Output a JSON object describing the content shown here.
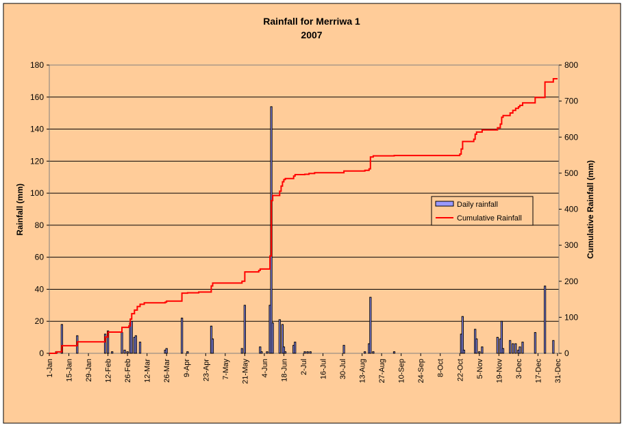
{
  "chart_data": {
    "type": "bar+line",
    "title": "Rainfall for Merriwa 1",
    "subtitle": "2007",
    "ylabel": "Rainfall (mm)",
    "y2label": "Cumulative Rainfall (mm)",
    "ylim": [
      0,
      180
    ],
    "y2lim": [
      0,
      800
    ],
    "yticks": [
      0,
      20,
      40,
      60,
      80,
      100,
      120,
      140,
      160,
      180
    ],
    "y2ticks": [
      0,
      100,
      200,
      300,
      400,
      500,
      600,
      700,
      800
    ],
    "grid": true,
    "legend_position": "right",
    "x_tick_labels": [
      "1-Jan",
      "15-Jan",
      "29-Jan",
      "12-Feb",
      "26-Feb",
      "12-Mar",
      "26-Mar",
      "9-Apr",
      "23-Apr",
      "7-May",
      "21-May",
      "4-Jun",
      "18-Jun",
      "2-Jul",
      "16-Jul",
      "30-Jul",
      "13-Aug",
      "27-Aug",
      "10-Sep",
      "24-Sep",
      "8-Oct",
      "22-Oct",
      "5-Nov",
      "19-Nov",
      "3-Dec",
      "17-Dec",
      "31-Dec"
    ],
    "colors": {
      "background": "#ffcc99",
      "plot_area": "#ffcc99",
      "daily_bar_fill": "#9999ff",
      "daily_bar_stroke": "#000000",
      "cumulative_line": "#ff0000",
      "gridline": "#000000"
    },
    "series": [
      {
        "name": "Daily rainfall",
        "axis": "left",
        "kind": "bar",
        "points": [
          [
            "2007-01-06",
            1
          ],
          [
            "2007-01-10",
            18
          ],
          [
            "2007-01-21",
            11
          ],
          [
            "2007-02-10",
            12
          ],
          [
            "2007-02-12",
            14
          ],
          [
            "2007-02-15",
            1
          ],
          [
            "2007-02-22",
            13
          ],
          [
            "2007-02-24",
            2
          ],
          [
            "2007-02-26",
            1
          ],
          [
            "2007-02-28",
            19
          ],
          [
            "2007-02-29",
            20
          ],
          [
            "2007-03-03",
            10
          ],
          [
            "2007-03-04",
            11
          ],
          [
            "2007-03-07",
            7
          ],
          [
            "2007-03-25",
            2
          ],
          [
            "2007-03-26",
            3
          ],
          [
            "2007-04-06",
            22
          ],
          [
            "2007-04-10",
            1
          ],
          [
            "2007-04-27",
            17
          ],
          [
            "2007-04-28",
            9
          ],
          [
            "2007-05-19",
            3
          ],
          [
            "2007-05-21",
            30
          ],
          [
            "2007-06-01",
            4
          ],
          [
            "2007-06-02",
            1
          ],
          [
            "2007-06-06",
            1
          ],
          [
            "2007-06-08",
            30
          ],
          [
            "2007-06-09",
            154
          ],
          [
            "2007-06-10",
            19
          ],
          [
            "2007-06-15",
            21
          ],
          [
            "2007-06-17",
            18
          ],
          [
            "2007-06-18",
            4
          ],
          [
            "2007-06-19",
            1
          ],
          [
            "2007-06-25",
            5
          ],
          [
            "2007-06-26",
            7
          ],
          [
            "2007-07-03",
            1
          ],
          [
            "2007-07-05",
            1
          ],
          [
            "2007-07-07",
            1
          ],
          [
            "2007-07-31",
            5
          ],
          [
            "2007-08-15",
            1
          ],
          [
            "2007-08-18",
            6
          ],
          [
            "2007-08-19",
            35
          ],
          [
            "2007-08-21",
            1
          ],
          [
            "2007-09-05",
            1
          ],
          [
            "2007-10-23",
            12
          ],
          [
            "2007-10-24",
            23
          ],
          [
            "2007-10-25",
            2
          ],
          [
            "2007-11-02",
            15
          ],
          [
            "2007-11-03",
            9
          ],
          [
            "2007-11-05",
            1
          ],
          [
            "2007-11-07",
            4
          ],
          [
            "2007-11-18",
            10
          ],
          [
            "2007-11-20",
            9
          ],
          [
            "2007-11-21",
            20
          ],
          [
            "2007-11-22",
            3
          ],
          [
            "2007-11-27",
            8
          ],
          [
            "2007-11-29",
            6
          ],
          [
            "2007-12-01",
            6
          ],
          [
            "2007-12-03",
            2
          ],
          [
            "2007-12-04",
            4
          ],
          [
            "2007-12-06",
            7
          ],
          [
            "2007-12-15",
            13
          ],
          [
            "2007-12-22",
            42
          ],
          [
            "2007-12-28",
            8
          ]
        ]
      },
      {
        "name": "Cumulative Rainfall",
        "axis": "right",
        "kind": "step-line",
        "points": [
          [
            "2007-01-01",
            0
          ],
          [
            "2007-01-05",
            0
          ],
          [
            "2007-01-06",
            4
          ],
          [
            "2007-01-10",
            21
          ],
          [
            "2007-01-21",
            32
          ],
          [
            "2007-02-10",
            45
          ],
          [
            "2007-02-12",
            59
          ],
          [
            "2007-02-22",
            72
          ],
          [
            "2007-02-27",
            76
          ],
          [
            "2007-02-28",
            95
          ],
          [
            "2007-03-01",
            110
          ],
          [
            "2007-03-03",
            120
          ],
          [
            "2007-03-05",
            130
          ],
          [
            "2007-03-07",
            136
          ],
          [
            "2007-03-10",
            140
          ],
          [
            "2007-03-25",
            142
          ],
          [
            "2007-03-26",
            145
          ],
          [
            "2007-04-06",
            167
          ],
          [
            "2007-04-10",
            168
          ],
          [
            "2007-04-18",
            170
          ],
          [
            "2007-04-27",
            187
          ],
          [
            "2007-04-28",
            195
          ],
          [
            "2007-05-19",
            200
          ],
          [
            "2007-05-21",
            226
          ],
          [
            "2007-05-31",
            230
          ],
          [
            "2007-06-01",
            234
          ],
          [
            "2007-06-08",
            270
          ],
          [
            "2007-06-09",
            424
          ],
          [
            "2007-06-10",
            438
          ],
          [
            "2007-06-15",
            450
          ],
          [
            "2007-06-16",
            464
          ],
          [
            "2007-06-17",
            476
          ],
          [
            "2007-06-18",
            482
          ],
          [
            "2007-06-19",
            485
          ],
          [
            "2007-06-25",
            492
          ],
          [
            "2007-06-26",
            496
          ],
          [
            "2007-07-03",
            497
          ],
          [
            "2007-07-06",
            499
          ],
          [
            "2007-07-10",
            501
          ],
          [
            "2007-07-31",
            506
          ],
          [
            "2007-08-15",
            508
          ],
          [
            "2007-08-18",
            512
          ],
          [
            "2007-08-19",
            545
          ],
          [
            "2007-08-21",
            548
          ],
          [
            "2007-09-05",
            549
          ],
          [
            "2007-10-22",
            553
          ],
          [
            "2007-10-23",
            567
          ],
          [
            "2007-10-24",
            588
          ],
          [
            "2007-11-01",
            594
          ],
          [
            "2007-11-02",
            608
          ],
          [
            "2007-11-03",
            614
          ],
          [
            "2007-11-07",
            620
          ],
          [
            "2007-11-18",
            626
          ],
          [
            "2007-11-20",
            636
          ],
          [
            "2007-11-21",
            655
          ],
          [
            "2007-11-22",
            660
          ],
          [
            "2007-11-27",
            667
          ],
          [
            "2007-11-29",
            674
          ],
          [
            "2007-12-01",
            680
          ],
          [
            "2007-12-03",
            684
          ],
          [
            "2007-12-04",
            688
          ],
          [
            "2007-12-06",
            695
          ],
          [
            "2007-12-15",
            710
          ],
          [
            "2007-12-22",
            753
          ],
          [
            "2007-12-28",
            762
          ],
          [
            "2007-12-31",
            762
          ]
        ]
      }
    ]
  }
}
